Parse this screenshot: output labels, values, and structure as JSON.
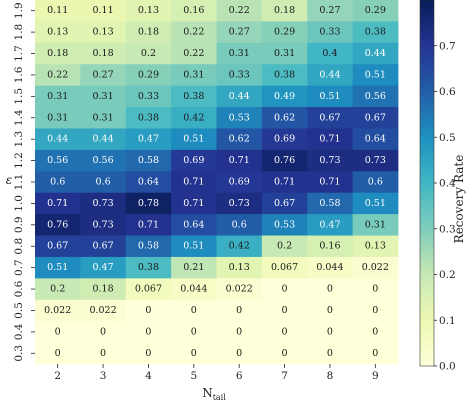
{
  "chart_data": {
    "type": "heatmap",
    "title": "",
    "x": [
      2,
      3,
      4,
      5,
      6,
      7,
      8,
      9
    ],
    "x_tick_labels": [
      "2",
      "3",
      "4",
      "5",
      "6",
      "7",
      "8",
      "9"
    ],
    "xlabel": "N_tail",
    "y_tick_labels": [
      "1.9",
      "1.8",
      "1.7",
      "1.6",
      "1.5",
      "1.4",
      "1.3",
      "1.2",
      "1.1",
      "1.0",
      "0.9",
      "0.8",
      "0.7",
      "0.6",
      "0.5",
      "0.4",
      "0.3"
    ],
    "ylabel": "ε",
    "colorbar": {
      "label": "Recovery Rate",
      "range": [
        0.0,
        0.8
      ],
      "ticks": [
        "0.0",
        "0.1",
        "0.2",
        "0.3",
        "0.4",
        "0.5",
        "0.6",
        "0.7"
      ],
      "colormap": "YlGnBu"
    },
    "rows": [
      {
        "y": "1.9",
        "values": [
          0.11,
          0.11,
          0.13,
          0.16,
          0.22,
          0.18,
          0.27,
          0.29
        ],
        "labels": [
          "0.11",
          "0.11",
          "0.13",
          "0.16",
          "0.22",
          "0.18",
          "0.27",
          "0.29"
        ]
      },
      {
        "y": "1.8",
        "values": [
          0.13,
          0.13,
          0.18,
          0.22,
          0.27,
          0.29,
          0.33,
          0.38
        ],
        "labels": [
          "0.13",
          "0.13",
          "0.18",
          "0.22",
          "0.27",
          "0.29",
          "0.33",
          "0.38"
        ]
      },
      {
        "y": "1.7",
        "values": [
          0.18,
          0.18,
          0.2,
          0.22,
          0.31,
          0.31,
          0.4,
          0.44
        ],
        "labels": [
          "0.18",
          "0.18",
          "0.2",
          "0.22",
          "0.31",
          "0.31",
          "0.4",
          "0.44"
        ]
      },
      {
        "y": "1.6",
        "values": [
          0.22,
          0.27,
          0.29,
          0.31,
          0.33,
          0.38,
          0.44,
          0.51
        ],
        "labels": [
          "0.22",
          "0.27",
          "0.29",
          "0.31",
          "0.33",
          "0.38",
          "0.44",
          "0.51"
        ]
      },
      {
        "y": "1.5",
        "values": [
          0.31,
          0.31,
          0.33,
          0.38,
          0.44,
          0.49,
          0.51,
          0.56
        ],
        "labels": [
          "0.31",
          "0.31",
          "0.33",
          "0.38",
          "0.44",
          "0.49",
          "0.51",
          "0.56"
        ]
      },
      {
        "y": "1.4",
        "values": [
          0.31,
          0.31,
          0.38,
          0.42,
          0.53,
          0.62,
          0.67,
          0.67
        ],
        "labels": [
          "0.31",
          "0.31",
          "0.38",
          "0.42",
          "0.53",
          "0.62",
          "0.67",
          "0.67"
        ]
      },
      {
        "y": "1.3",
        "values": [
          0.44,
          0.44,
          0.47,
          0.51,
          0.62,
          0.69,
          0.71,
          0.64
        ],
        "labels": [
          "0.44",
          "0.44",
          "0.47",
          "0.51",
          "0.62",
          "0.69",
          "0.71",
          "0.64"
        ]
      },
      {
        "y": "1.2",
        "values": [
          0.56,
          0.56,
          0.58,
          0.69,
          0.71,
          0.76,
          0.73,
          0.73
        ],
        "labels": [
          "0.56",
          "0.56",
          "0.58",
          "0.69",
          "0.71",
          "0.76",
          "0.73",
          "0.73"
        ]
      },
      {
        "y": "1.1",
        "values": [
          0.6,
          0.6,
          0.64,
          0.71,
          0.69,
          0.71,
          0.71,
          0.6
        ],
        "labels": [
          "0.6",
          "0.6",
          "0.64",
          "0.71",
          "0.69",
          "0.71",
          "0.71",
          "0.6"
        ]
      },
      {
        "y": "1.0",
        "values": [
          0.71,
          0.73,
          0.78,
          0.71,
          0.73,
          0.67,
          0.58,
          0.51
        ],
        "labels": [
          "0.71",
          "0.73",
          "0.78",
          "0.71",
          "0.73",
          "0.67",
          "0.58",
          "0.51"
        ]
      },
      {
        "y": "0.9",
        "values": [
          0.76,
          0.73,
          0.71,
          0.64,
          0.6,
          0.53,
          0.47,
          0.31
        ],
        "labels": [
          "0.76",
          "0.73",
          "0.71",
          "0.64",
          "0.6",
          "0.53",
          "0.47",
          "0.31"
        ]
      },
      {
        "y": "0.8",
        "values": [
          0.67,
          0.67,
          0.58,
          0.51,
          0.42,
          0.2,
          0.16,
          0.13
        ],
        "labels": [
          "0.67",
          "0.67",
          "0.58",
          "0.51",
          "0.42",
          "0.2",
          "0.16",
          "0.13"
        ]
      },
      {
        "y": "0.7",
        "values": [
          0.51,
          0.47,
          0.38,
          0.21,
          0.13,
          0.067,
          0.044,
          0.022
        ],
        "labels": [
          "0.51",
          "0.47",
          "0.38",
          "0.21",
          "0.13",
          "0.067",
          "0.044",
          "0.022"
        ]
      },
      {
        "y": "0.6",
        "values": [
          0.2,
          0.18,
          0.067,
          0.044,
          0.022,
          0,
          0,
          0
        ],
        "labels": [
          "0.2",
          "0.18",
          "0.067",
          "0.044",
          "0.022",
          "0",
          "0",
          "0"
        ]
      },
      {
        "y": "0.5",
        "values": [
          0.022,
          0.022,
          0,
          0,
          0,
          0,
          0,
          0
        ],
        "labels": [
          "0.022",
          "0.022",
          "0",
          "0",
          "0",
          "0",
          "0",
          "0"
        ]
      },
      {
        "y": "0.4",
        "values": [
          0,
          0,
          0,
          0,
          0,
          0,
          0,
          0
        ],
        "labels": [
          "0",
          "0",
          "0",
          "0",
          "0",
          "0",
          "0",
          "0"
        ]
      },
      {
        "y": "0.3",
        "values": [
          0,
          0,
          0,
          0,
          0,
          0,
          0,
          0
        ],
        "labels": [
          "0",
          "0",
          "0",
          "0",
          "0",
          "0",
          "0",
          "0"
        ]
      }
    ]
  }
}
